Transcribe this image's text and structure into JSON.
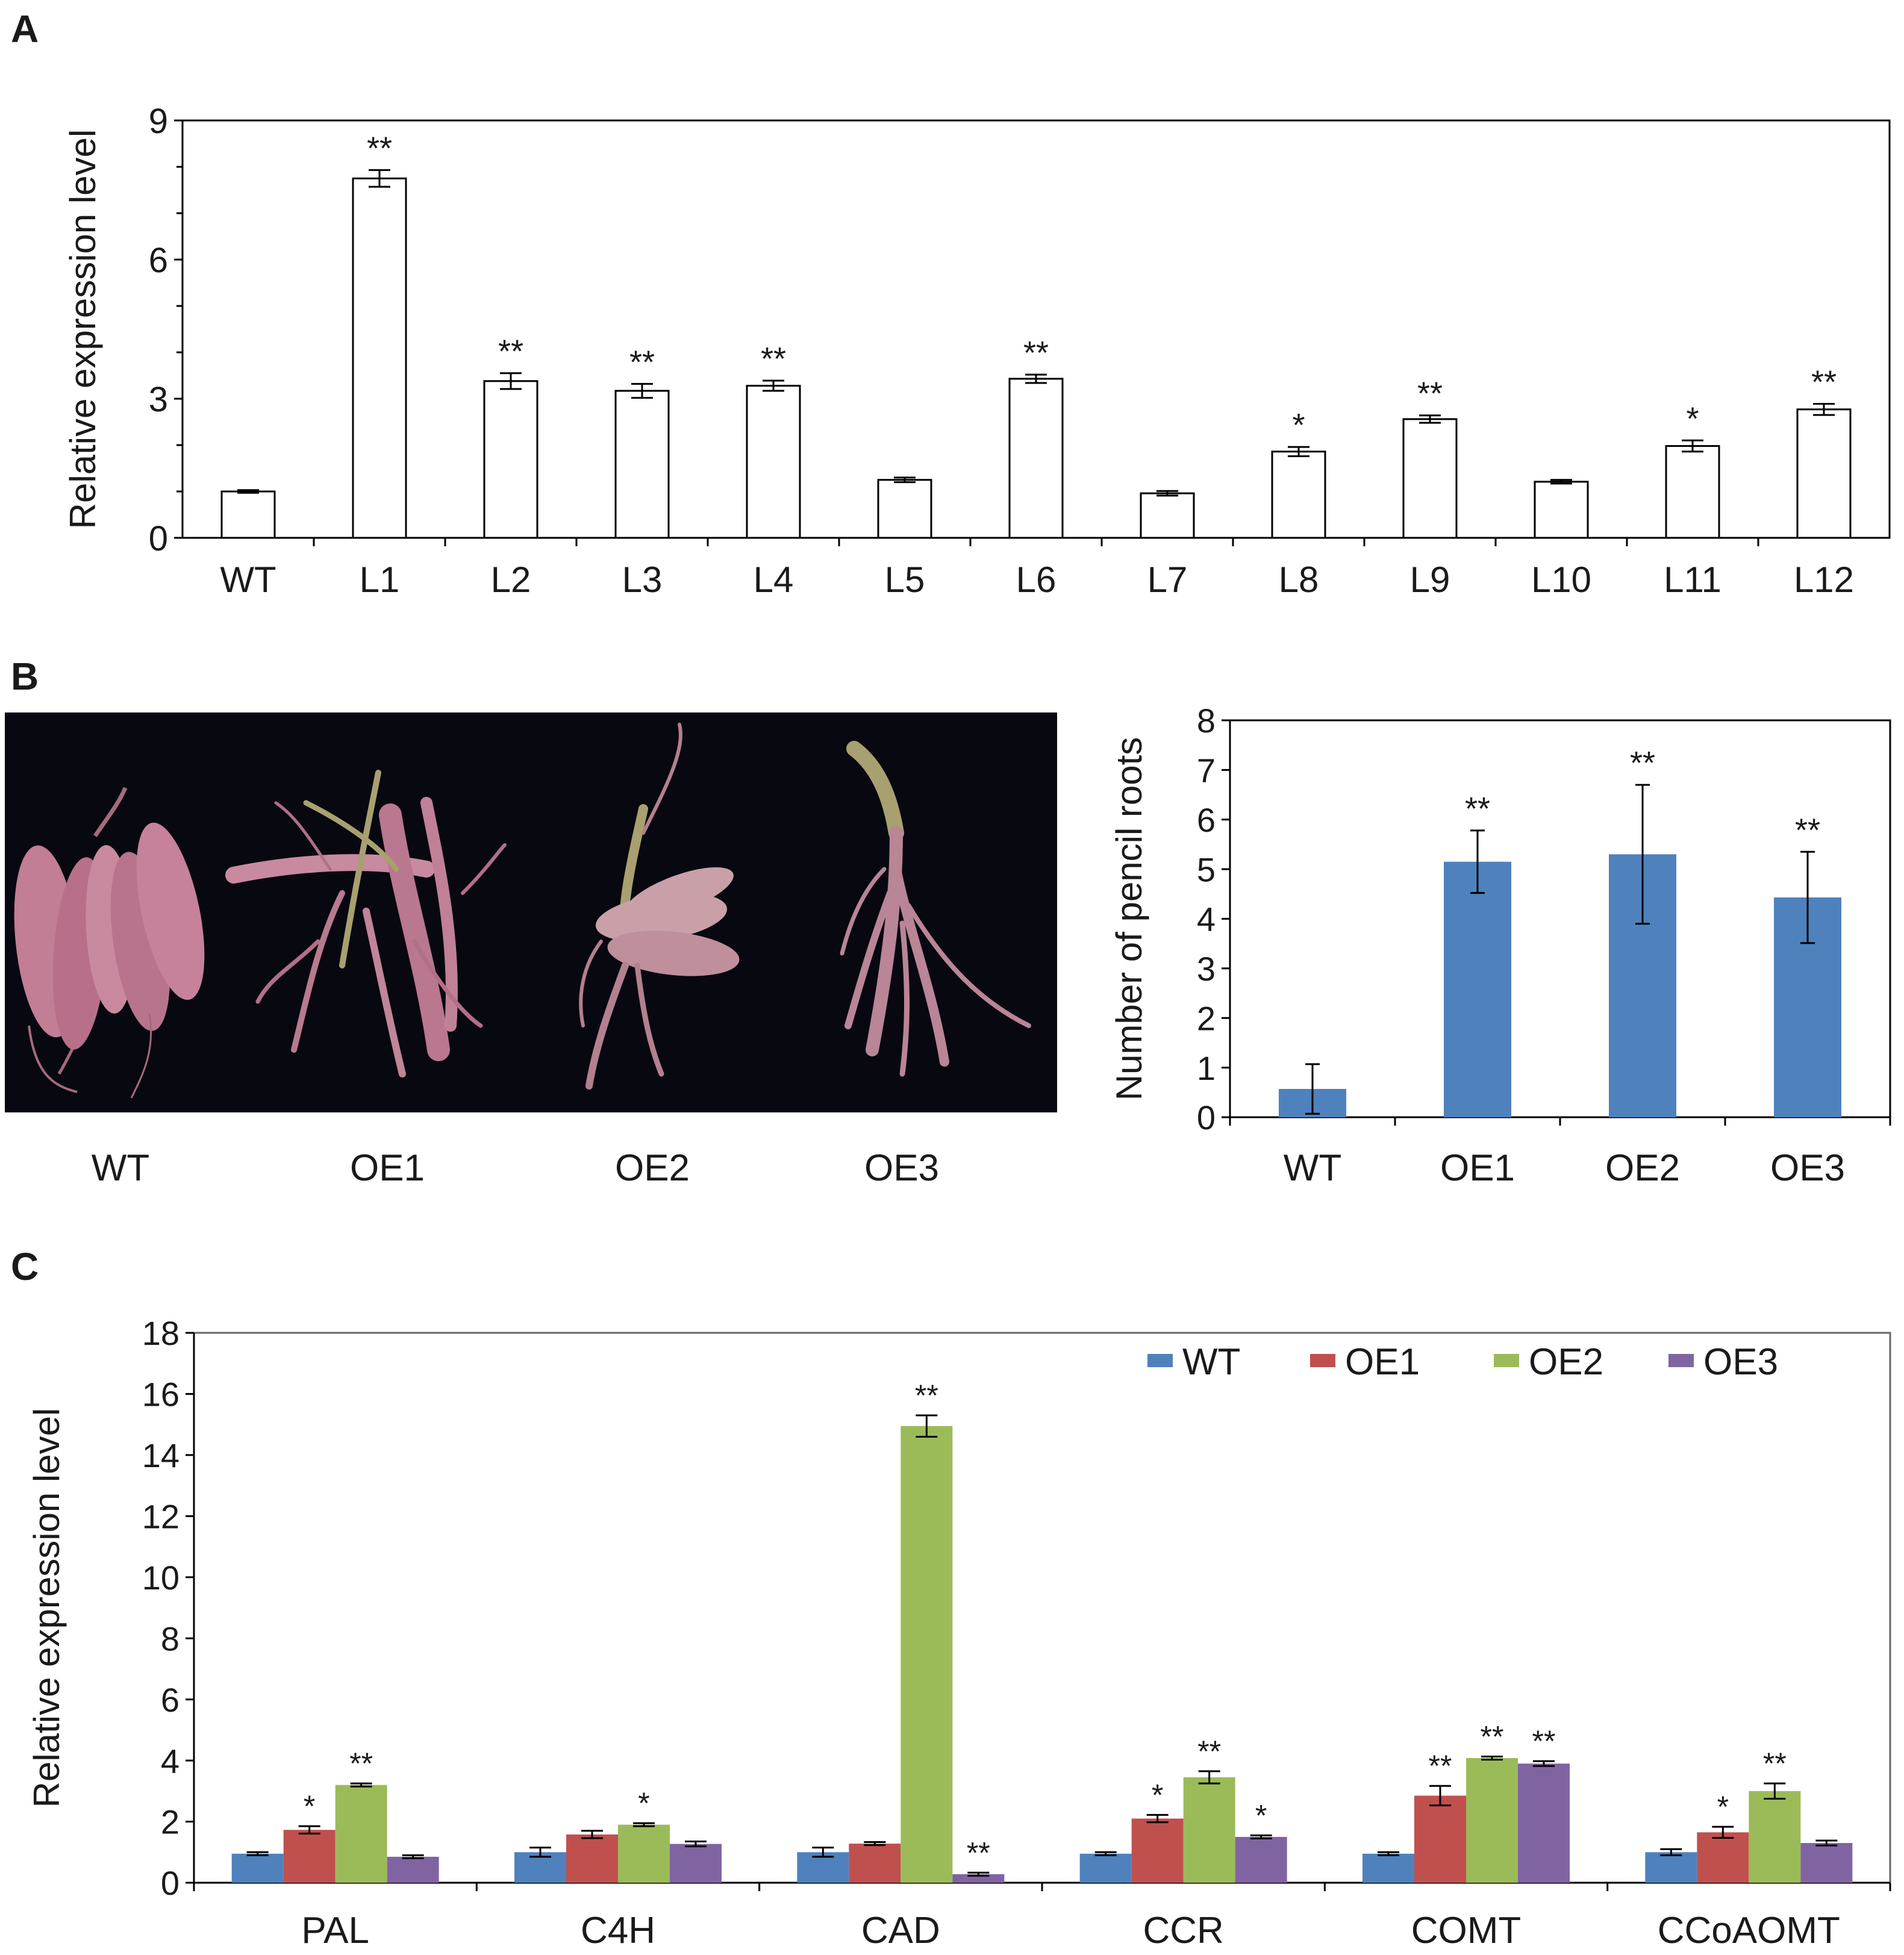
{
  "panels": [
    {
      "letter": "A"
    },
    {
      "letter": "B"
    },
    {
      "letter": "C"
    }
  ],
  "photo": {
    "labels": [
      "WT",
      "OE1",
      "OE2",
      "OE3"
    ],
    "colors": {
      "background": "#080810",
      "root": "#c9869b",
      "root_dark": "#9c5a70",
      "stem": "#a8a070"
    }
  },
  "chart_data": [
    {
      "panel": "A",
      "type": "bar",
      "title": "",
      "xlabel": "",
      "ylabel": "Relative expression level",
      "ylim": [
        0,
        9
      ],
      "yticks": [
        "0",
        "3",
        "6",
        "9"
      ],
      "grid": false,
      "categories": [
        "WT",
        "L1",
        "L2",
        "L3",
        "L4",
        "L5",
        "L6",
        "L7",
        "L8",
        "L9",
        "L10",
        "L11",
        "L12"
      ],
      "values": [
        1.0,
        7.75,
        3.38,
        3.17,
        3.28,
        1.25,
        3.43,
        0.96,
        1.86,
        2.56,
        1.21,
        1.98,
        2.77
      ],
      "errors": [
        0.03,
        0.18,
        0.17,
        0.15,
        0.11,
        0.05,
        0.09,
        0.05,
        0.1,
        0.08,
        0.04,
        0.12,
        0.12
      ],
      "annotations": [
        "",
        "**",
        "**",
        "**",
        "**",
        "",
        "**",
        "",
        "*",
        "**",
        "",
        "*",
        "**"
      ],
      "colors": {
        "bar_fill": "#ffffff",
        "bar_stroke": "#000000"
      }
    },
    {
      "panel": "B",
      "type": "bar",
      "title": "",
      "xlabel": "",
      "ylabel": "Number of pencil  roots",
      "ylim": [
        0,
        8
      ],
      "yticks": [
        "0",
        "1",
        "2",
        "3",
        "4",
        "5",
        "6",
        "7",
        "8"
      ],
      "grid": false,
      "categories": [
        "WT",
        "OE1",
        "OE2",
        "OE3"
      ],
      "values": [
        0.57,
        5.15,
        5.3,
        4.43
      ],
      "errors": [
        0.5,
        0.63,
        1.4,
        0.92
      ],
      "annotations": [
        "",
        "**",
        "**",
        "**"
      ],
      "colors": {
        "bar_fill": "#4f81bd"
      }
    },
    {
      "panel": "C",
      "type": "bar",
      "title": "",
      "xlabel": "",
      "ylabel": "Relative expression level",
      "ylim": [
        0,
        18
      ],
      "yticks": [
        "0",
        "2",
        "4",
        "6",
        "8",
        "10",
        "12",
        "14",
        "16",
        "18"
      ],
      "grid": false,
      "legend_position": "top-right",
      "categories": [
        "PAL",
        "C4H",
        "CAD",
        "CCR",
        "COMT",
        "CCoAOMT"
      ],
      "series": [
        {
          "name": "WT",
          "color": "#4f81bd",
          "values": [
            0.95,
            1.0,
            1.0,
            0.95,
            0.95,
            1.0
          ],
          "errors": [
            0.05,
            0.15,
            0.15,
            0.05,
            0.05,
            0.1
          ],
          "annotations": [
            "",
            "",
            "",
            "",
            "",
            ""
          ]
        },
        {
          "name": "OE1",
          "color": "#c0504d",
          "values": [
            1.73,
            1.58,
            1.28,
            2.1,
            2.85,
            1.65
          ],
          "errors": [
            0.12,
            0.12,
            0.05,
            0.12,
            0.32,
            0.18
          ],
          "annotations": [
            "*",
            "",
            "",
            "*",
            "**",
            "*"
          ]
        },
        {
          "name": "OE2",
          "color": "#9bbb59",
          "values": [
            3.2,
            1.9,
            14.95,
            3.45,
            4.08,
            3.0
          ],
          "errors": [
            0.05,
            0.05,
            0.35,
            0.2,
            0.05,
            0.25
          ],
          "annotations": [
            "**",
            "*",
            "**",
            "**",
            "**",
            "**"
          ]
        },
        {
          "name": "OE3",
          "color": "#8064a2",
          "values": [
            0.85,
            1.27,
            0.28,
            1.5,
            3.9,
            1.3
          ],
          "errors": [
            0.05,
            0.08,
            0.05,
            0.05,
            0.08,
            0.08
          ],
          "annotations": [
            "",
            "",
            "**",
            "*",
            "**",
            ""
          ]
        }
      ]
    }
  ]
}
